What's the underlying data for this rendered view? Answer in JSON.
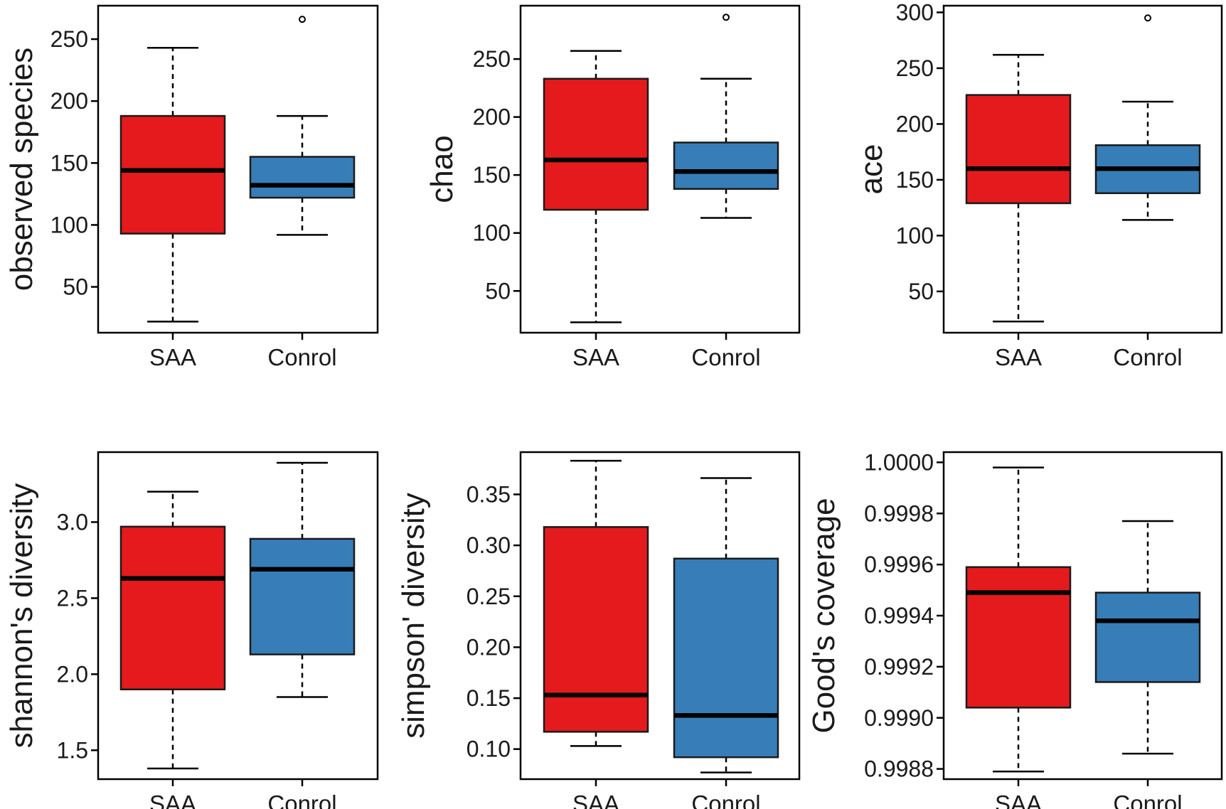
{
  "colors": {
    "saa": "#e41a1c",
    "control": "#377eb8"
  },
  "chart_data": [
    {
      "type": "boxplot",
      "ylabel": "observed species",
      "categories": [
        "SAA",
        "Conrol"
      ],
      "ylim": [
        13,
        277
      ],
      "yticks": [
        50,
        100,
        150,
        200,
        250
      ],
      "ytick_labels": [
        "50",
        "100",
        "150",
        "200",
        "250"
      ],
      "boxes": [
        {
          "name": "SAA",
          "min": 22,
          "q1": 93,
          "median": 144,
          "q3": 188,
          "max": 243,
          "outliers": []
        },
        {
          "name": "Conrol",
          "min": 92,
          "q1": 122,
          "median": 132,
          "q3": 155,
          "max": 188,
          "outliers": [
            266
          ]
        }
      ]
    },
    {
      "type": "boxplot",
      "ylabel": "chao",
      "categories": [
        "SAA",
        "Conrol"
      ],
      "ylim": [
        14,
        296
      ],
      "yticks": [
        50,
        100,
        150,
        200,
        250
      ],
      "ytick_labels": [
        "50",
        "100",
        "150",
        "200",
        "250"
      ],
      "boxes": [
        {
          "name": "SAA",
          "min": 23,
          "q1": 120,
          "median": 163,
          "q3": 233,
          "max": 257,
          "outliers": []
        },
        {
          "name": "Conrol",
          "min": 113,
          "q1": 138,
          "median": 153,
          "q3": 178,
          "max": 233,
          "outliers": [
            286
          ]
        }
      ]
    },
    {
      "type": "boxplot",
      "ylabel": "ace",
      "categories": [
        "SAA",
        "Conrol"
      ],
      "ylim": [
        13,
        306
      ],
      "yticks": [
        50,
        100,
        150,
        200,
        250,
        300
      ],
      "ytick_labels": [
        "50",
        "100",
        "150",
        "200",
        "250",
        "300"
      ],
      "boxes": [
        {
          "name": "SAA",
          "min": 23,
          "q1": 129,
          "median": 160,
          "q3": 226,
          "max": 262,
          "outliers": []
        },
        {
          "name": "Conrol",
          "min": 114,
          "q1": 138,
          "median": 160,
          "q3": 181,
          "max": 220,
          "outliers": [
            295
          ]
        }
      ]
    },
    {
      "type": "boxplot",
      "ylabel": "shannon's diversity",
      "categories": [
        "SAA",
        "Conrol"
      ],
      "ylim": [
        1.31,
        3.46
      ],
      "yticks": [
        1.5,
        2.0,
        2.5,
        3.0
      ],
      "ytick_labels": [
        "1.5",
        "2.0",
        "2.5",
        "3.0"
      ],
      "boxes": [
        {
          "name": "SAA",
          "min": 1.38,
          "q1": 1.9,
          "median": 2.63,
          "q3": 2.97,
          "max": 3.2,
          "outliers": []
        },
        {
          "name": "Conrol",
          "min": 1.85,
          "q1": 2.13,
          "median": 2.69,
          "q3": 2.89,
          "max": 3.39,
          "outliers": []
        }
      ]
    },
    {
      "type": "boxplot",
      "ylabel": "simpson' diversity",
      "categories": [
        "SAA",
        "Conrol"
      ],
      "ylim": [
        0.0705,
        0.3915
      ],
      "yticks": [
        0.1,
        0.15,
        0.2,
        0.25,
        0.3,
        0.35
      ],
      "ytick_labels": [
        "0.10",
        "0.15",
        "0.20",
        "0.25",
        "0.30",
        "0.35"
      ],
      "boxes": [
        {
          "name": "SAA",
          "min": 0.103,
          "q1": 0.117,
          "median": 0.153,
          "q3": 0.318,
          "max": 0.383,
          "outliers": []
        },
        {
          "name": "Conrol",
          "min": 0.077,
          "q1": 0.092,
          "median": 0.133,
          "q3": 0.287,
          "max": 0.366,
          "outliers": []
        }
      ]
    },
    {
      "type": "boxplot",
      "ylabel": "Good's coverage",
      "categories": [
        "SAA",
        "Conrol"
      ],
      "ylim": [
        0.99876,
        1.00004
      ],
      "yticks": [
        0.9988,
        0.999,
        0.9992,
        0.9994,
        0.9996,
        0.9998,
        1.0
      ],
      "ytick_labels": [
        "0.9988",
        "0.9990",
        "0.9992",
        "0.9994",
        "0.9996",
        "0.9998",
        "1.0000"
      ],
      "boxes": [
        {
          "name": "SAA",
          "min": 0.99879,
          "q1": 0.99904,
          "median": 0.99949,
          "q3": 0.99959,
          "max": 0.99998,
          "outliers": []
        },
        {
          "name": "Conrol",
          "min": 0.99886,
          "q1": 0.99914,
          "median": 0.99938,
          "q3": 0.99949,
          "max": 0.99977,
          "outliers": []
        }
      ]
    }
  ]
}
